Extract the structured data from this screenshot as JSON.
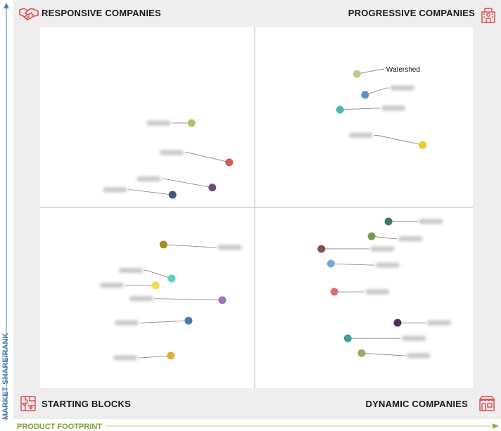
{
  "quadrants": {
    "top_left": "RESPONSIVE COMPANIES",
    "top_right": "PROGRESSIVE COMPANIES",
    "bottom_left": "STARTING BLOCKS",
    "bottom_right": "DYNAMIC COMPANIES"
  },
  "icons": {
    "top_left": "handshake-icon",
    "top_right": "building-icon",
    "bottom_left": "puzzle-icon",
    "bottom_right": "shop-icon",
    "accent": "#e0474c"
  },
  "axes": {
    "x_label": "PRODUCT FOOTPRINT",
    "y_label": "MARKET SHARE/RANK",
    "x_color": "#8db33a",
    "y_color": "#4a7fb5"
  },
  "chart_data": {
    "type": "scatter",
    "title": "",
    "xlabel": "PRODUCT FOOTPRINT",
    "ylabel": "MARKET SHARE/RANK",
    "xlim": [
      0,
      100
    ],
    "ylim": [
      0,
      100
    ],
    "grid": false,
    "points": [
      {
        "label": "Watershed",
        "x": 73.2,
        "y": 87.1,
        "color": "#b5cf8a",
        "blurred": false,
        "lx": 79.5,
        "ly": 88.4
      },
      {
        "label": "",
        "x": 75.1,
        "y": 81.3,
        "color": "#5b8fcc",
        "blurred": true,
        "lx": 80.6,
        "ly": 83.2
      },
      {
        "label": "",
        "x": 69.3,
        "y": 77.2,
        "color": "#4fb8a8",
        "blurred": true,
        "lx": 78.5,
        "ly": 77.6
      },
      {
        "label": "",
        "x": 88.4,
        "y": 67.4,
        "color": "#f2c62e",
        "blurred": true,
        "lx": 77.2,
        "ly": 70.1
      },
      {
        "label": "",
        "x": 35.0,
        "y": 73.5,
        "color": "#a8c66c",
        "blurred": true,
        "lx": 30.5,
        "ly": 73.5
      },
      {
        "label": "",
        "x": 43.7,
        "y": 62.6,
        "color": "#d75a55",
        "blurred": true,
        "lx": 33.5,
        "ly": 65.3
      },
      {
        "label": "",
        "x": 39.8,
        "y": 55.6,
        "color": "#6b4e7c",
        "blurred": true,
        "lx": 28.2,
        "ly": 58.0
      },
      {
        "label": "",
        "x": 30.6,
        "y": 53.6,
        "color": "#3f5b7d",
        "blurred": true,
        "lx": 20.4,
        "ly": 55.0
      },
      {
        "label": "",
        "x": 80.5,
        "y": 46.2,
        "color": "#3d7a6a",
        "blurred": true,
        "lx": 87.2,
        "ly": 46.2
      },
      {
        "label": "",
        "x": 76.6,
        "y": 42.1,
        "color": "#7a9a4a",
        "blurred": true,
        "lx": 82.5,
        "ly": 41.4
      },
      {
        "label": "",
        "x": 65.0,
        "y": 38.6,
        "color": "#8a4a4a",
        "blurred": true,
        "lx": 76.0,
        "ly": 38.6
      },
      {
        "label": "",
        "x": 67.2,
        "y": 34.5,
        "color": "#7aa6d9",
        "blurred": true,
        "lx": 77.2,
        "ly": 34.1
      },
      {
        "label": "",
        "x": 68.0,
        "y": 26.7,
        "color": "#e07070",
        "blurred": true,
        "lx": 74.8,
        "ly": 26.7
      },
      {
        "label": "",
        "x": 82.6,
        "y": 18.1,
        "color": "#4a3550",
        "blurred": true,
        "lx": 89.1,
        "ly": 18.1
      },
      {
        "label": "",
        "x": 71.1,
        "y": 13.8,
        "color": "#3fa08f",
        "blurred": true,
        "lx": 83.3,
        "ly": 13.8
      },
      {
        "label": "",
        "x": 74.3,
        "y": 9.7,
        "color": "#95ad5c",
        "blurred": true,
        "lx": 84.3,
        "ly": 9.0
      },
      {
        "label": "",
        "x": 28.5,
        "y": 39.8,
        "color": "#a88a2a",
        "blurred": true,
        "lx": 40.7,
        "ly": 39.0
      },
      {
        "label": "",
        "x": 30.4,
        "y": 30.4,
        "color": "#5fd0c0",
        "blurred": true,
        "lx": 24.1,
        "ly": 32.6
      },
      {
        "label": "",
        "x": 26.7,
        "y": 28.5,
        "color": "#f2dc4a",
        "blurred": true,
        "lx": 19.7,
        "ly": 28.5
      },
      {
        "label": "",
        "x": 42.1,
        "y": 24.4,
        "color": "#9b7ab5",
        "blurred": true,
        "lx": 26.5,
        "ly": 24.8
      },
      {
        "label": "",
        "x": 34.3,
        "y": 18.7,
        "color": "#4a78b0",
        "blurred": true,
        "lx": 23.1,
        "ly": 18.1
      },
      {
        "label": "",
        "x": 30.2,
        "y": 9.0,
        "color": "#e0b035",
        "blurred": true,
        "lx": 22.8,
        "ly": 8.4
      }
    ]
  }
}
